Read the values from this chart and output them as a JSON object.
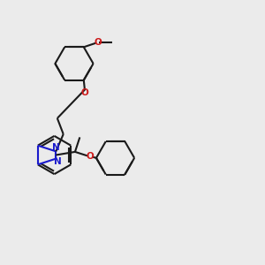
{
  "bg_color": "#ebebeb",
  "bond_color": "#1a1a1a",
  "blue_color": "#1a1acc",
  "red_color": "#cc1a1a",
  "lw": 1.5,
  "figsize": [
    3.0,
    3.0
  ],
  "dpi": 100,
  "xlim": [
    0,
    10
  ],
  "ylim": [
    0,
    10
  ]
}
